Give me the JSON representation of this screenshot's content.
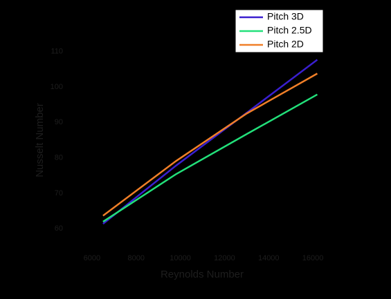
{
  "chart_data": {
    "type": "line",
    "x_label": "Reynolds Number",
    "y_label": "Nusselt Number",
    "x": [
      6500,
      9800,
      13000,
      16200
    ],
    "series": [
      {
        "name": "Pitch 3D",
        "color": "#3a1fcf",
        "values": [
          61.4,
          77.8,
          92.7,
          107.7
        ]
      },
      {
        "name": "Pitch 2.5D",
        "color": "#22e07a",
        "values": [
          62,
          75.4,
          86.7,
          97.9
        ]
      },
      {
        "name": "Pitch 2D",
        "color": "#f07f28",
        "values": [
          63.7,
          79.1,
          92.5,
          103.8
        ]
      }
    ],
    "xlim": [
      5000,
      17000
    ],
    "xticks": [
      6000,
      8000,
      10000,
      12000,
      14000,
      16000
    ],
    "ylim": [
      55,
      115
    ],
    "yticks": [
      60,
      70,
      80,
      90,
      100,
      110
    ],
    "legend": "upper right"
  }
}
